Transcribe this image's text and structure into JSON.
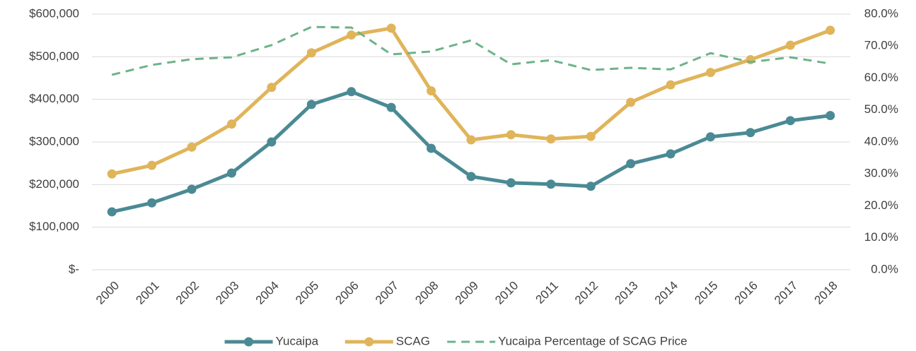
{
  "chart_data": {
    "type": "line",
    "categories": [
      "2000",
      "2001",
      "2002",
      "2003",
      "2004",
      "2005",
      "2006",
      "2007",
      "2008",
      "2009",
      "2010",
      "2011",
      "2012",
      "2013",
      "2014",
      "2015",
      "2016",
      "2017",
      "2018"
    ],
    "series": [
      {
        "name": "Yucaipa",
        "color": "#4a8a94",
        "marker": "circle",
        "values": [
          136000,
          157000,
          189000,
          227000,
          300000,
          388000,
          418000,
          381000,
          285000,
          219000,
          204000,
          201000,
          196000,
          249000,
          272000,
          312000,
          322000,
          350000,
          362000
        ]
      },
      {
        "name": "SCAG",
        "color": "#e0b45a",
        "marker": "circle",
        "values": [
          225000,
          245000,
          288000,
          342000,
          428000,
          509000,
          551000,
          567000,
          420000,
          305000,
          317000,
          307000,
          313000,
          393000,
          434000,
          463000,
          493000,
          527000,
          562000
        ]
      },
      {
        "name": "Yucaipa Percentage of SCAG Price",
        "color": "#6db389",
        "dashed": true,
        "axis": "y2",
        "values": [
          61.0,
          64.1,
          65.9,
          66.5,
          70.3,
          76.0,
          75.8,
          67.4,
          68.3,
          71.8,
          64.3,
          65.6,
          62.5,
          63.2,
          62.7,
          67.8,
          65.0,
          66.5,
          64.5
        ]
      }
    ],
    "ylim": [
      0,
      600000
    ],
    "yticks": [
      {
        "value": 0,
        "label": "$-"
      },
      {
        "value": 100000,
        "label": "$100,000"
      },
      {
        "value": 200000,
        "label": "$200,000"
      },
      {
        "value": 300000,
        "label": "$300,000"
      },
      {
        "value": 400000,
        "label": "$400,000"
      },
      {
        "value": 500000,
        "label": "$500,000"
      },
      {
        "value": 600000,
        "label": "$600,000"
      }
    ],
    "y2lim": [
      0,
      80
    ],
    "y2ticks": [
      {
        "value": 0,
        "label": "0.0%"
      },
      {
        "value": 10,
        "label": "10.0%"
      },
      {
        "value": 20,
        "label": "20.0%"
      },
      {
        "value": 30,
        "label": "30.0%"
      },
      {
        "value": 40,
        "label": "40.0%"
      },
      {
        "value": 50,
        "label": "50.0%"
      },
      {
        "value": 60,
        "label": "60.0%"
      },
      {
        "value": 70,
        "label": "70.0%"
      },
      {
        "value": 80,
        "label": "80.0%"
      }
    ],
    "grid": true,
    "legend": "bottom"
  }
}
